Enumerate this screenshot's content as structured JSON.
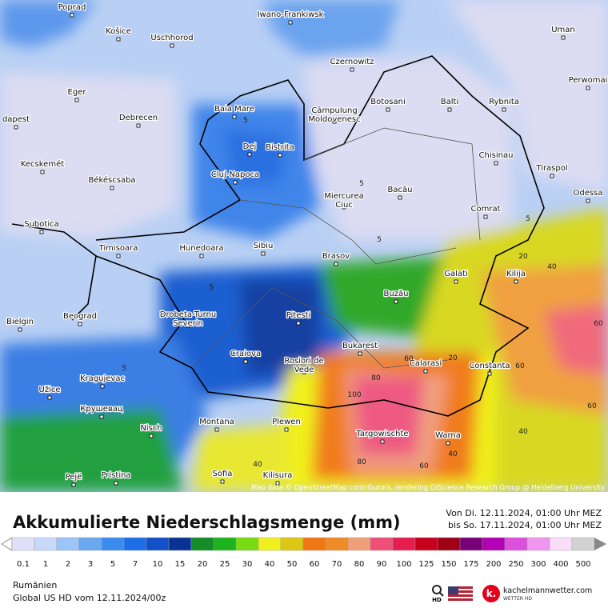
{
  "map": {
    "cities": [
      "Poprad",
      "Košice",
      "Uschhorod",
      "Iwano-Frankiwsk",
      "Czernowitz",
      "Uman",
      "Perwomai",
      "Eger",
      "Debrecen",
      "Baia Mare",
      "Câmpulung Moldovenesc",
      "Botosani",
      "Balti",
      "Rybnita",
      "dapest",
      "Dej",
      "Bistrita",
      "Kecskemét",
      "Békéscsaba",
      "Cluj-Napoca",
      "Chisinau",
      "Tiraspol",
      "Odessa",
      "Miercurea Ciuc",
      "Bacău",
      "Subotica",
      "Comrat",
      "Timisoara",
      "Hunedoara",
      "Sibiu",
      "Brasov",
      "Galati",
      "Kilija",
      "Buzău",
      "Beograd",
      "Bielgin",
      "Drobeta-Turnu Severin",
      "Pitesti",
      "Bukarest",
      "Craiova",
      "Rosiori de Vede",
      "Calarasi",
      "Constanta",
      "Kragujevac",
      "Užice",
      "Крушевац",
      "Montana",
      "Plewen",
      "Nisch",
      "Targowischte",
      "Warna",
      "Sofia",
      "Kilisura",
      "Pristina",
      "Pejë"
    ],
    "contour_labels": [
      "5",
      "5",
      "5",
      "5",
      "5",
      "5",
      "20",
      "40",
      "60",
      "20",
      "80",
      "100",
      "60",
      "40",
      "60",
      "80",
      "60",
      "40",
      "40",
      "60"
    ],
    "attribution": "Map data © OpenStreetMap contributors, rendering GIScience Research Group @ Heidelberg University"
  },
  "title": "Akkumulierte Niederschlagsmenge (mm)",
  "period": [
    "Von Di. 12.11.2024, 01:00 Uhr MEZ",
    "bis So. 17.11.2024, 01:00 Uhr MEZ"
  ],
  "legend": [
    "0.1",
    "1",
    "2",
    "3",
    "5",
    "7",
    "10",
    "15",
    "20",
    "25",
    "30",
    "40",
    "50",
    "60",
    "70",
    "80",
    "90",
    "100",
    "125",
    "150",
    "175",
    "200",
    "250",
    "300",
    "400",
    "500"
  ],
  "footer": {
    "region": "Rumänien",
    "model": "Global US HD vom  12.11.2024/00z"
  },
  "badges": {
    "hd": "HD",
    "site": "kachelmannwetter.com",
    "tagline": "WETTER HD"
  }
}
